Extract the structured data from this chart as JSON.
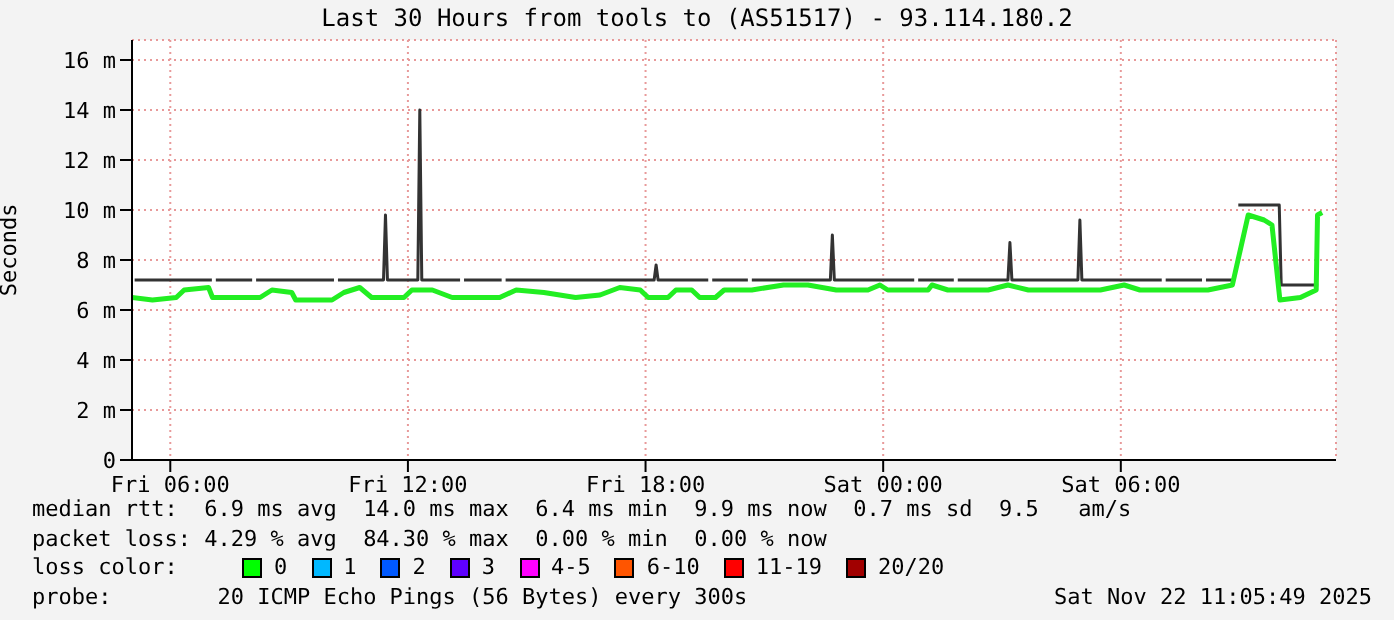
{
  "chart_data": {
    "type": "line",
    "title": "Last 30 Hours from tools to (AS51517) - 93.114.180.2",
    "ylabel": "Seconds",
    "xlim": [
      "2025-11-21T05:02",
      "2025-11-22T11:26"
    ],
    "xticks": [
      {
        "value": "2025-11-21T06:00",
        "label": "Fri 06:00"
      },
      {
        "value": "2025-11-21T12:00",
        "label": "Fri 12:00"
      },
      {
        "value": "2025-11-21T18:00",
        "label": "Fri 18:00"
      },
      {
        "value": "2025-11-22T00:00",
        "label": "Sat 00:00"
      },
      {
        "value": "2025-11-22T06:00",
        "label": "Sat 06:00"
      }
    ],
    "ylim": [
      0,
      16.8
    ],
    "yticks": [
      0,
      {
        "value": 2,
        "label": "2 m"
      },
      {
        "value": 4,
        "label": "4 m"
      },
      {
        "value": 6,
        "label": "6 m"
      },
      {
        "value": 8,
        "label": "8 m"
      },
      {
        "value": 10,
        "label": "10 m"
      },
      {
        "value": 12,
        "label": "12 m"
      },
      {
        "value": 14,
        "label": "14 m"
      },
      {
        "value": 16,
        "label": "16 m"
      }
    ],
    "grid": true,
    "marker": "none",
    "line_style": "solid",
    "series": [
      {
        "color": "#333333",
        "x": [
          "2025-11-21T05:06",
          "2025-11-21T07:03",
          "2025-11-21T07:06",
          "2025-11-21T07:09",
          "2025-11-21T08:04",
          "2025-11-21T08:07",
          "2025-11-21T08:10",
          "2025-11-21T10:08",
          "2025-11-21T10:11",
          "2025-11-21T10:14",
          "2025-11-21T11:23",
          "2025-11-21T11:26",
          "2025-11-21T11:29",
          "2025-11-21T12:15",
          "2025-11-21T12:18",
          "2025-11-21T12:21",
          "2025-11-21T13:19",
          "2025-11-21T13:22",
          "2025-11-21T13:25",
          "2025-11-21T14:22",
          "2025-11-21T14:25",
          "2025-11-21T14:28",
          "2025-11-21T18:13",
          "2025-11-21T18:16",
          "2025-11-21T18:19",
          "2025-11-21T19:35",
          "2025-11-21T19:38",
          "2025-11-21T19:41",
          "2025-11-21T20:35",
          "2025-11-21T20:38",
          "2025-11-21T20:41",
          "2025-11-21T22:40",
          "2025-11-21T22:43",
          "2025-11-21T22:46",
          "2025-11-22T00:47",
          "2025-11-22T00:50",
          "2025-11-22T00:53",
          "2025-11-22T01:47",
          "2025-11-22T01:50",
          "2025-11-22T01:53",
          "2025-11-22T03:09",
          "2025-11-22T03:12",
          "2025-11-22T03:15",
          "2025-11-22T04:55",
          "2025-11-22T04:58",
          "2025-11-22T05:01",
          "2025-11-22T07:02",
          "2025-11-22T07:05",
          "2025-11-22T07:08",
          "2025-11-22T08:03",
          "2025-11-22T08:06",
          "2025-11-22T08:09",
          "2025-11-22T08:52",
          "2025-11-22T08:55",
          "2025-11-22T08:58",
          "2025-11-22T10:00",
          "2025-11-22T10:03",
          "2025-11-22T10:59"
        ],
        "values": [
          7.2,
          7.2,
          null,
          7.2,
          7.2,
          null,
          7.2,
          7.2,
          null,
          7.2,
          7.2,
          9.8,
          7.2,
          7.2,
          14.0,
          7.2,
          7.2,
          null,
          7.2,
          7.2,
          null,
          7.2,
          7.2,
          7.8,
          7.2,
          7.2,
          null,
          7.2,
          7.2,
          null,
          7.2,
          7.2,
          9.0,
          7.2,
          7.2,
          null,
          7.2,
          7.2,
          null,
          7.2,
          7.2,
          8.7,
          7.2,
          7.2,
          9.6,
          7.2,
          7.2,
          null,
          7.2,
          7.2,
          null,
          7.2,
          7.2,
          null,
          10.2,
          10.2,
          7.0,
          7.0
        ]
      },
      {
        "color": "#22ee22",
        "x": [
          "2025-11-21T05:02",
          "2025-11-21T05:33",
          "2025-11-21T06:09",
          "2025-11-21T06:21",
          "2025-11-21T06:58",
          "2025-11-21T07:04",
          "2025-11-21T08:16",
          "2025-11-21T08:34",
          "2025-11-21T09:04",
          "2025-11-21T09:10",
          "2025-11-21T10:05",
          "2025-11-21T10:23",
          "2025-11-21T10:47",
          "2025-11-21T11:05",
          "2025-11-21T11:54",
          "2025-11-21T12:06",
          "2025-11-21T12:37",
          "2025-11-21T13:07",
          "2025-11-21T14:19",
          "2025-11-21T14:44",
          "2025-11-21T15:26",
          "2025-11-21T16:14",
          "2025-11-21T16:51",
          "2025-11-21T17:21",
          "2025-11-21T17:52",
          "2025-11-21T18:04",
          "2025-11-21T18:34",
          "2025-11-21T18:46",
          "2025-11-21T19:10",
          "2025-11-21T19:22",
          "2025-11-21T19:46",
          "2025-11-21T19:59",
          "2025-11-21T20:41",
          "2025-11-21T21:29",
          "2025-11-21T22:06",
          "2025-11-21T22:49",
          "2025-11-21T23:37",
          "2025-11-21T23:55",
          "2025-11-22T00:07",
          "2025-11-22T01:08",
          "2025-11-22T01:14",
          "2025-11-22T01:38",
          "2025-11-22T02:39",
          "2025-11-22T03:09",
          "2025-11-22T03:40",
          "2025-11-22T05:29",
          "2025-11-22T06:05",
          "2025-11-22T06:29",
          "2025-11-22T08:12",
          "2025-11-22T08:49",
          "2025-11-22T09:13",
          "2025-11-22T09:37",
          "2025-11-22T09:49",
          "2025-11-22T10:01",
          "2025-11-22T10:32",
          "2025-11-22T10:56",
          "2025-11-22T10:58",
          "2025-11-22T11:05"
        ],
        "values": [
          6.5,
          6.4,
          6.5,
          6.8,
          6.9,
          6.5,
          6.5,
          6.8,
          6.7,
          6.4,
          6.4,
          6.7,
          6.9,
          6.5,
          6.5,
          6.8,
          6.8,
          6.5,
          6.5,
          6.8,
          6.7,
          6.5,
          6.6,
          6.9,
          6.8,
          6.5,
          6.5,
          6.8,
          6.8,
          6.5,
          6.5,
          6.8,
          6.8,
          7.0,
          7.0,
          6.8,
          6.8,
          7.0,
          6.8,
          6.8,
          7.0,
          6.8,
          6.8,
          7.0,
          6.8,
          6.8,
          7.0,
          6.8,
          6.8,
          7.0,
          9.8,
          9.6,
          9.4,
          6.4,
          6.5,
          6.8,
          9.8,
          9.9
        ]
      }
    ],
    "annotations": [
      "median rtt:  6.9 ms avg  14.0 ms max  6.4 ms min  9.9 ms now  0.7 ms sd  9.5   am/s",
      "packet loss: 4.29 % avg  84.30 % max  0.00 % min  0.00 % now",
      "loss color:",
      "0",
      "1",
      "2",
      "3",
      "4-5",
      "6-10",
      "11-19",
      "20/20",
      "probe:        20 ICMP Echo Pings (56 Bytes) every 300s",
      "Sat Nov 22 11:05:49 2025"
    ]
  }
}
